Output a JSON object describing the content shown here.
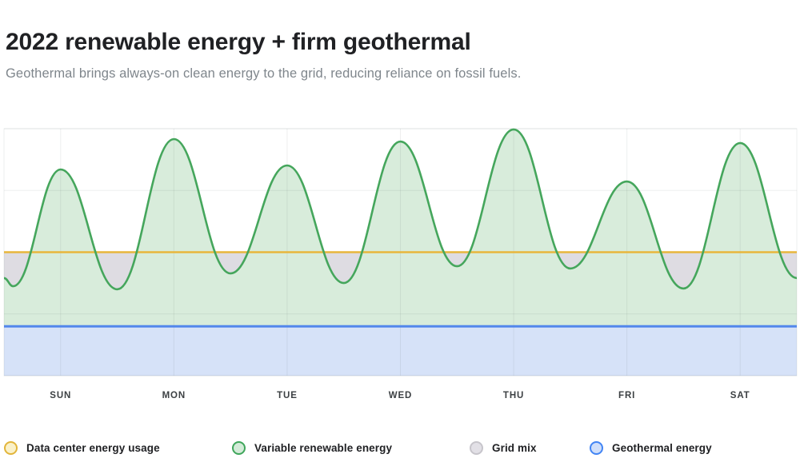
{
  "header": {
    "title": "2022 renewable energy + firm geothermal",
    "subtitle": "Geothermal brings always-on clean energy to the grid, reducing reliance on fossil fuels."
  },
  "chart_data": {
    "type": "area",
    "title": "2022 renewable energy + firm geothermal",
    "x_labels": [
      "SUN",
      "MON",
      "TUE",
      "WED",
      "THU",
      "FRI",
      "SAT"
    ],
    "y_axis": {
      "visible": false,
      "range": [
        0,
        100
      ],
      "note": "relative energy scale, no tick labels shown"
    },
    "grid": true,
    "series": [
      {
        "name": "Data center energy usage",
        "kind": "constant-line",
        "color": "#E8B63C",
        "value": 50
      },
      {
        "name": "Variable renewable energy",
        "kind": "smooth-area",
        "color": "#45A65C",
        "fill": "#D8ECDB",
        "points_day_value": [
          [
            -0.5,
            39.5
          ],
          [
            -0.42,
            36.2
          ],
          [
            0,
            83.5
          ],
          [
            0.5,
            35.0
          ],
          [
            1,
            95.8
          ],
          [
            1.5,
            41.4
          ],
          [
            2,
            85.1
          ],
          [
            2.5,
            37.5
          ],
          [
            3,
            94.8
          ],
          [
            3.5,
            44.3
          ],
          [
            4,
            99.7
          ],
          [
            4.5,
            43.4
          ],
          [
            5,
            78.6
          ],
          [
            5.5,
            35.3
          ],
          [
            6,
            94.2
          ],
          [
            6.5,
            39.5
          ]
        ]
      },
      {
        "name": "Grid mix",
        "kind": "gap-fill",
        "fill": "#DEDCE2",
        "note": "fills gap between data-center usage line and renewable curve where renewables dip below usage"
      },
      {
        "name": "Geothermal energy",
        "kind": "constant-band",
        "color": "#5287EB",
        "fill": "#D6E2F8",
        "value": 20
      }
    ]
  },
  "legend": [
    {
      "label": "Data center energy usage",
      "swatch_border": "#E2B53A",
      "swatch_fill": "#FAF1C9"
    },
    {
      "label": "Variable renewable energy",
      "swatch_border": "#3FA65B",
      "swatch_fill": "#D3EBD8"
    },
    {
      "label": "Grid mix",
      "swatch_border": "#C7C5CB",
      "swatch_fill": "#E2E0E6"
    },
    {
      "label": "Geothermal energy",
      "swatch_border": "#4285F4",
      "swatch_fill": "#D0DFFA"
    }
  ]
}
